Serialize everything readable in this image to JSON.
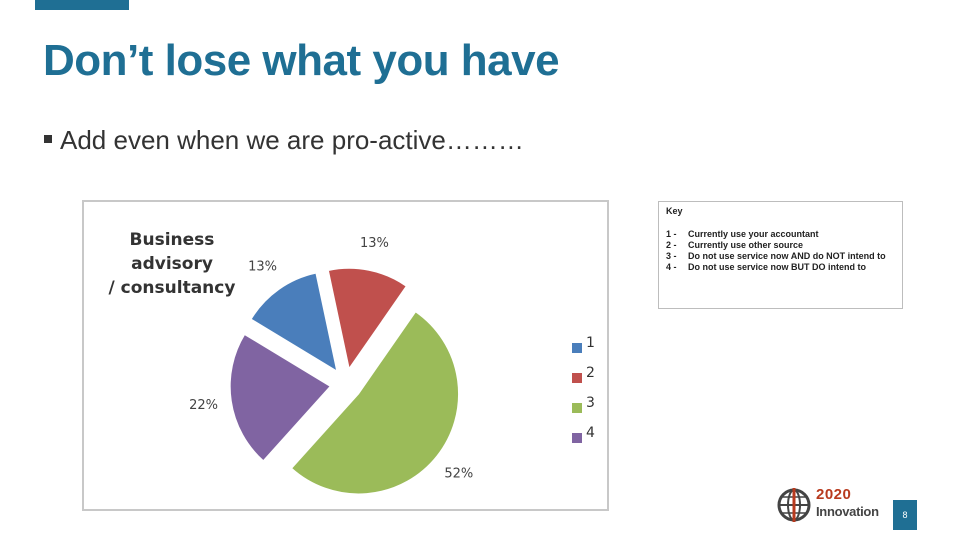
{
  "slide": {
    "title": "Don’t lose what you have",
    "bullet": "Add even when we are pro-active………",
    "page_number": "8",
    "accent_color": "#1f6f94"
  },
  "chart_data": {
    "type": "pie",
    "title": "Business advisory / consultancy",
    "title_lines": [
      "Business advisory",
      "/ consultancy"
    ],
    "categories": [
      "1",
      "2",
      "3",
      "4"
    ],
    "values": [
      13,
      13,
      52,
      22
    ],
    "labels": [
      "13%",
      "13%",
      "52%",
      "22%"
    ],
    "colors": [
      "#4a7ebb",
      "#c0504d",
      "#9bbb59",
      "#8064a2"
    ],
    "exploded": true,
    "legend_position": "right"
  },
  "key": {
    "title": "Key",
    "items": [
      {
        "num": "1 -",
        "text": "Currently use your accountant"
      },
      {
        "num": "2 -",
        "text": "Currently use other source"
      },
      {
        "num": "3 -",
        "text": "Do not use service now AND do NOT intend to"
      },
      {
        "num": "4 -",
        "text": "Do not use service now BUT DO intend to"
      }
    ]
  },
  "logo": {
    "line1": "2020",
    "line2": "Innovation",
    "icon": "globe-icon"
  }
}
